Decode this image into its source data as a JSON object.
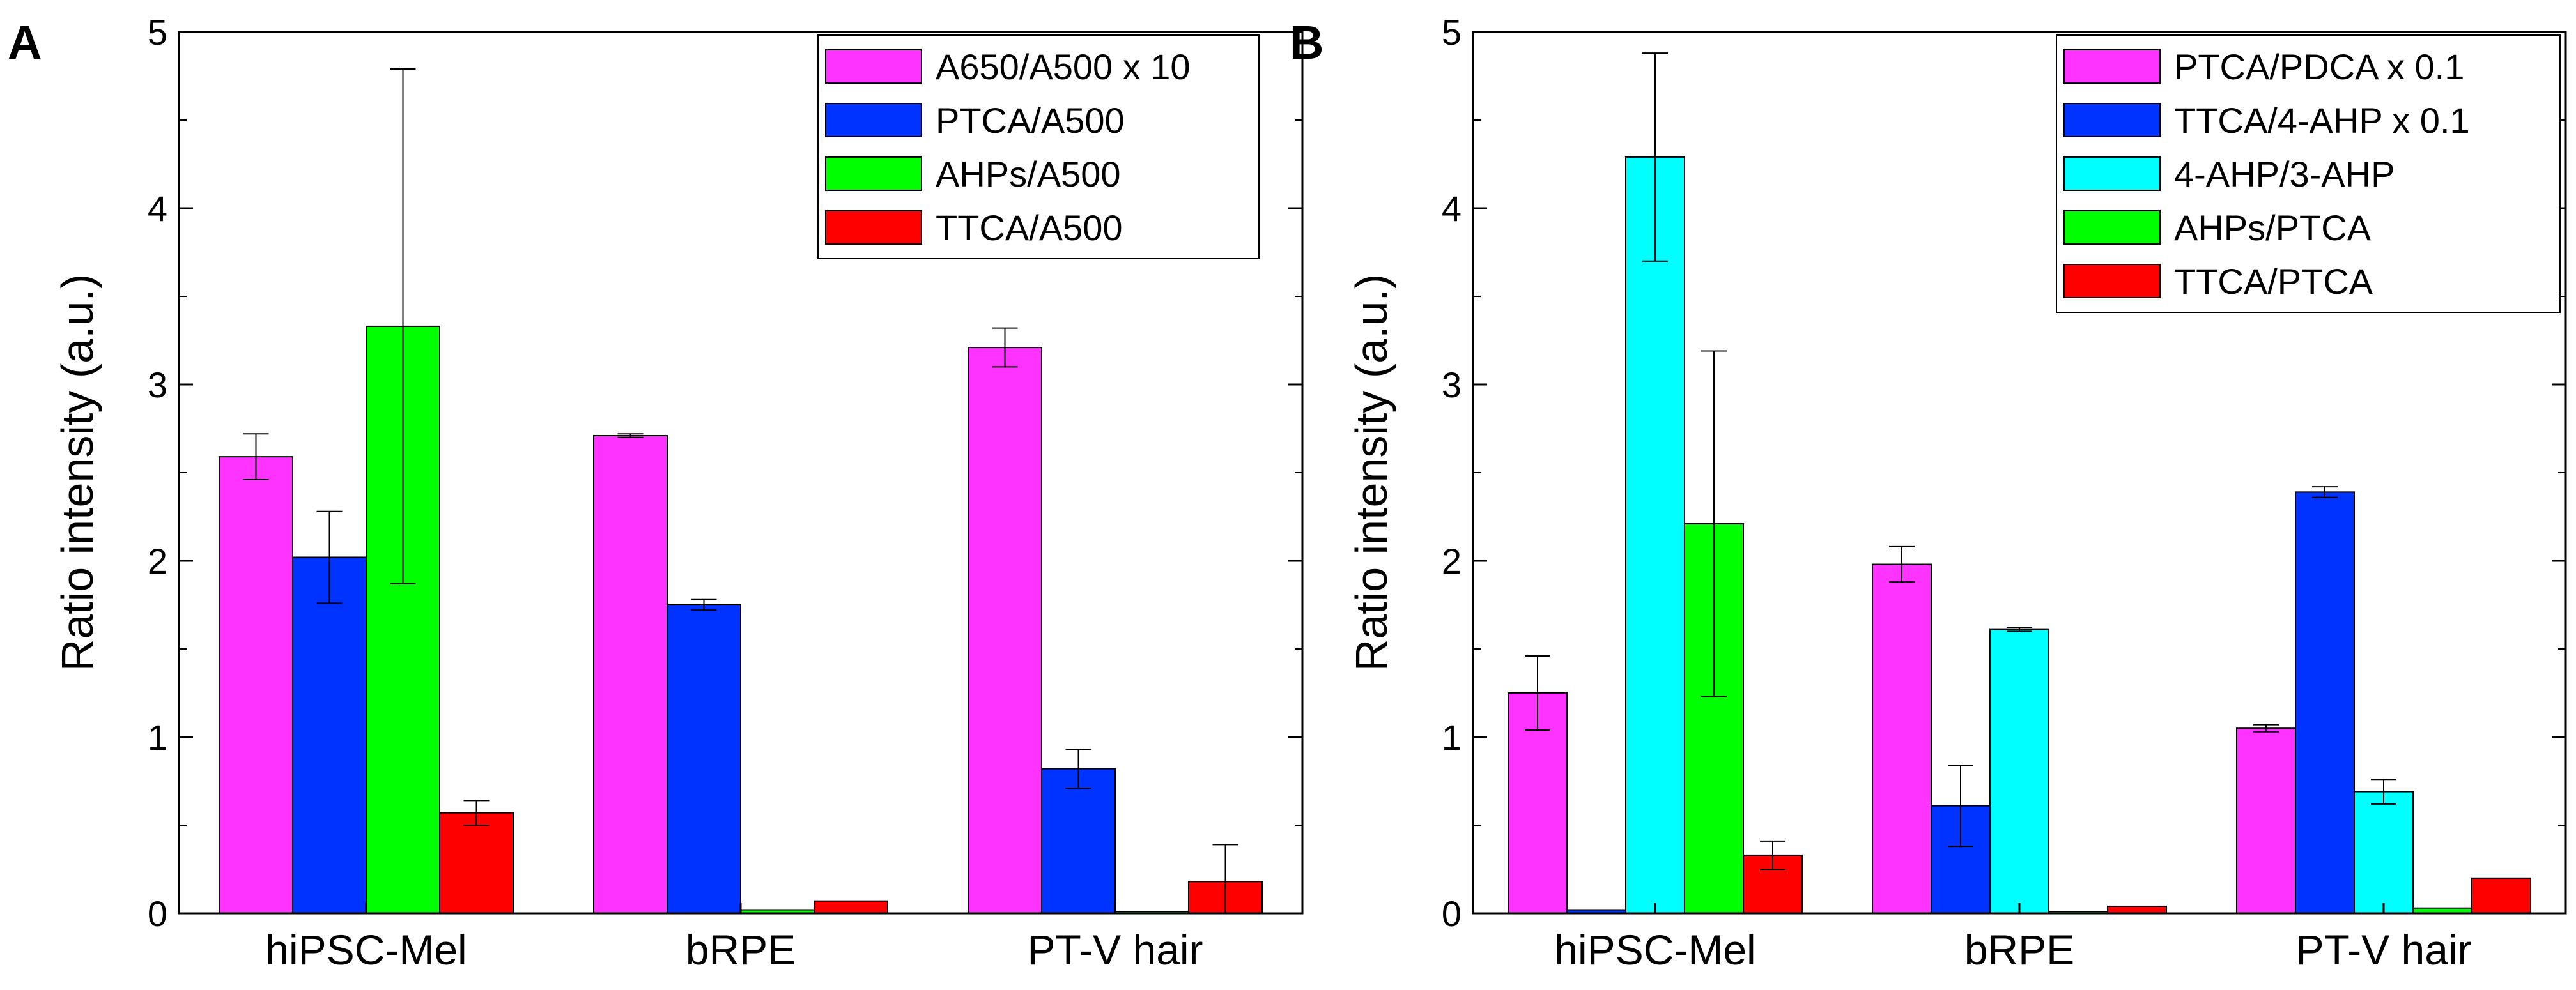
{
  "chart_data": [
    {
      "type": "bar",
      "panel": "A",
      "title": "",
      "xlabel": "",
      "ylabel": "Ratio intensity (a.u.)",
      "ylim": [
        0,
        5
      ],
      "yticks": [
        0,
        1,
        2,
        3,
        4,
        5
      ],
      "grid": false,
      "legend_position": "top-right",
      "categories": [
        "hiPSC-Mel",
        "bRPE",
        "PT-V hair"
      ],
      "series": [
        {
          "name": "A650/A500 x 10",
          "color": "#FF33FF",
          "values": [
            2.59,
            2.71,
            3.21
          ],
          "errors": [
            0.13,
            0.01,
            0.11
          ]
        },
        {
          "name": "PTCA/A500",
          "color": "#0033FF",
          "values": [
            2.02,
            1.75,
            0.82
          ],
          "errors": [
            0.26,
            0.03,
            0.11
          ]
        },
        {
          "name": "AHPs/A500",
          "color": "#00FF00",
          "values": [
            3.33,
            0.02,
            0.01
          ],
          "errors": [
            1.46,
            0.0,
            0.0
          ]
        },
        {
          "name": "TTCA/A500",
          "color": "#FF0000",
          "values": [
            0.57,
            0.07,
            0.18
          ],
          "errors": [
            0.07,
            0.0,
            0.21
          ]
        }
      ]
    },
    {
      "type": "bar",
      "panel": "B",
      "title": "",
      "xlabel": "",
      "ylabel": "Ratio intensity (a.u.)",
      "ylim": [
        0,
        5
      ],
      "yticks": [
        0,
        1,
        2,
        3,
        4,
        5
      ],
      "grid": false,
      "legend_position": "top-right",
      "categories": [
        "hiPSC-Mel",
        "bRPE",
        "PT-V hair"
      ],
      "series": [
        {
          "name": "PTCA/PDCA x 0.1",
          "color": "#FF33FF",
          "values": [
            1.25,
            1.98,
            1.05
          ],
          "errors": [
            0.21,
            0.1,
            0.02
          ]
        },
        {
          "name": "TTCA/4-AHP x 0.1",
          "color": "#0033FF",
          "values": [
            0.02,
            0.61,
            2.39
          ],
          "errors": [
            0.0,
            0.23,
            0.03
          ]
        },
        {
          "name": "4-AHP/3-AHP",
          "color": "#00FFFF",
          "values": [
            4.29,
            1.61,
            0.69
          ],
          "errors": [
            0.59,
            0.01,
            0.07
          ]
        },
        {
          "name": "AHPs/PTCA",
          "color": "#00FF00",
          "values": [
            2.21,
            0.01,
            0.03
          ],
          "errors": [
            0.98,
            0.0,
            0.0
          ]
        },
        {
          "name": "TTCA/PTCA",
          "color": "#FF0000",
          "values": [
            0.33,
            0.04,
            0.2
          ],
          "errors": [
            0.08,
            0.0,
            0.0
          ]
        }
      ]
    }
  ]
}
